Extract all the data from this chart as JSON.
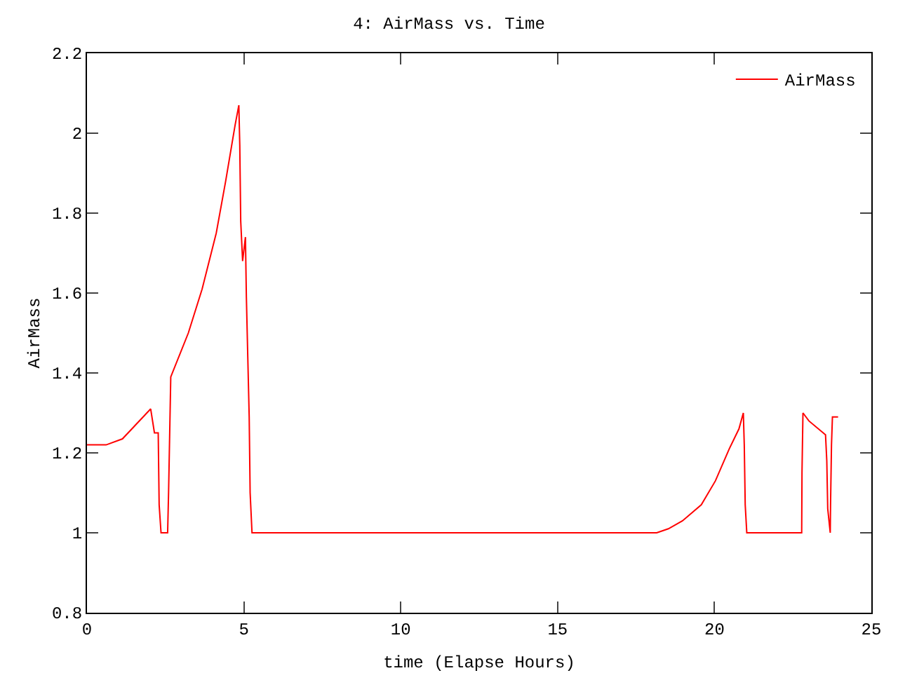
{
  "chart_data": {
    "type": "line",
    "title": "4: AirMass vs. Time",
    "xlabel": "time (Elapse Hours)",
    "ylabel": "AirMass",
    "xlim": [
      0,
      25
    ],
    "xticks": [
      0,
      5,
      10,
      15,
      20,
      25
    ],
    "ylim": [
      0.8,
      2.2
    ],
    "yticks": [
      0.8,
      1,
      1.2,
      1.4,
      1.6,
      1.8,
      2,
      2.2
    ],
    "grid": false,
    "legend": "top right",
    "marker": "none",
    "line_style": "solid",
    "series": [
      {
        "name": "AirMass",
        "color": "#ff0000",
        "x": [
          0,
          0.61,
          1.13,
          2.03,
          2.15,
          2.27,
          2.3,
          2.36,
          2.57,
          2.6,
          2.67,
          3.23,
          3.67,
          4.12,
          4.42,
          4.72,
          4.84,
          4.87,
          4.9,
          4.96,
          5.05,
          5.08,
          5.17,
          5.2,
          5.26,
          18.16,
          18.53,
          18.98,
          19.58,
          20.03,
          20.47,
          20.78,
          20.92,
          20.95,
          20.98,
          21.03,
          22.78,
          22.79,
          22.82,
          23.01,
          23.54,
          23.58,
          23.61,
          23.69,
          23.7,
          23.73,
          23.76,
          23.94
        ],
        "values": [
          1.22,
          1.22,
          1.235,
          1.31,
          1.25,
          1.25,
          1.07,
          1.0,
          1.0,
          1.1,
          1.39,
          1.5,
          1.61,
          1.75,
          1.88,
          2.02,
          2.07,
          1.97,
          1.78,
          1.68,
          1.74,
          1.59,
          1.29,
          1.1,
          1.0,
          1.0,
          1.01,
          1.03,
          1.07,
          1.13,
          1.21,
          1.26,
          1.3,
          1.22,
          1.07,
          1.0,
          1.0,
          1.15,
          1.3,
          1.28,
          1.245,
          1.18,
          1.06,
          1.0,
          1.07,
          1.22,
          1.29,
          1.29
        ]
      }
    ]
  }
}
